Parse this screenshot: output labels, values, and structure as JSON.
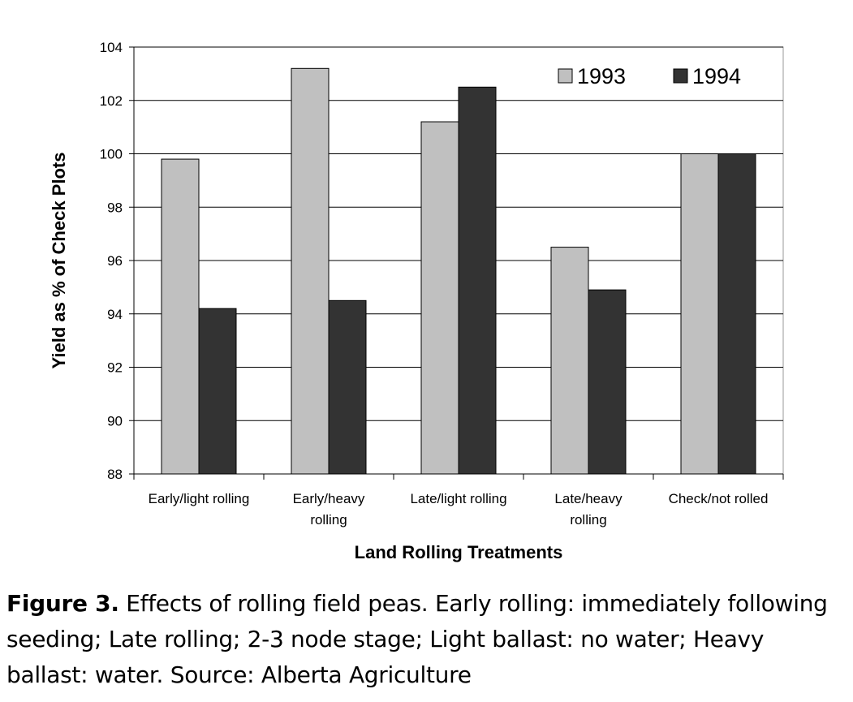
{
  "chart_data": {
    "type": "bar",
    "title": "",
    "xlabel": "Land Rolling Treatments",
    "ylabel": "Yield as % of Check Plots",
    "ylim": [
      88,
      104
    ],
    "yticks": [
      88,
      90,
      92,
      94,
      96,
      98,
      100,
      102,
      104
    ],
    "grid": true,
    "legend_position": "top-right",
    "categories": [
      [
        "Early/light rolling"
      ],
      [
        "Early/heavy",
        "rolling"
      ],
      [
        "Late/light rolling"
      ],
      [
        "Late/heavy",
        "rolling"
      ],
      [
        "Check/not rolled"
      ]
    ],
    "series": [
      {
        "name": "1993",
        "color": "#c0c0c0",
        "values": [
          99.8,
          103.2,
          101.2,
          96.5,
          100
        ]
      },
      {
        "name": "1994",
        "color": "#333333",
        "values": [
          94.2,
          94.5,
          102.5,
          94.9,
          100
        ]
      }
    ]
  },
  "caption": {
    "label": "Figure 3.",
    "text": " Effects of rolling field peas. Early rolling: immediately following seeding; Late rolling; 2-3 node stage; Light ballast: no water; Heavy ballast: water. Source: Alberta Agriculture"
  }
}
